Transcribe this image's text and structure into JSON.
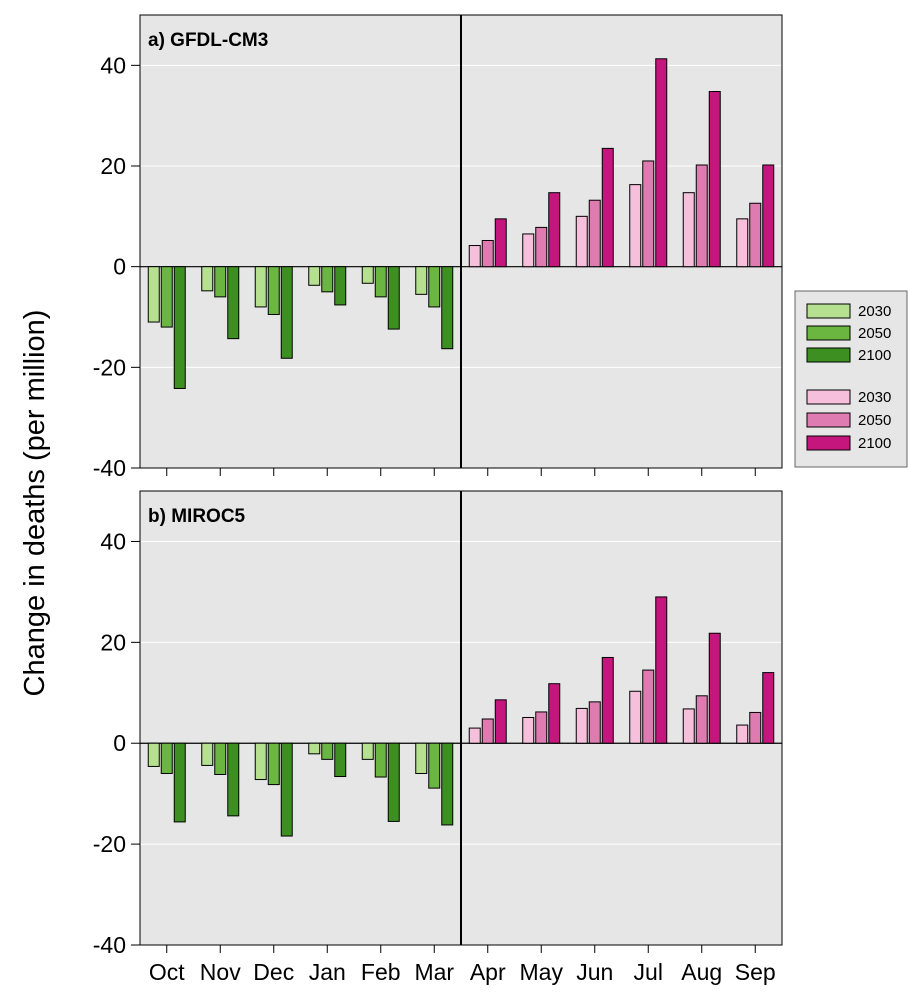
{
  "chart_data": {
    "type": "bar",
    "ylabel": "Change in deaths (per million)",
    "ylim": [
      -40,
      50
    ],
    "yticks": [
      -40,
      -20,
      0,
      20,
      40
    ],
    "categories": [
      "Oct",
      "Nov",
      "Dec",
      "Jan",
      "Feb",
      "Mar",
      "Apr",
      "May",
      "Jun",
      "Jul",
      "Aug",
      "Sep"
    ],
    "grid": "horizontal",
    "legend_position": "right",
    "season_divider_between": [
      "Mar",
      "Apr"
    ],
    "colors": {
      "cold": [
        "#b5e08f",
        "#6ab640",
        "#3e8f22"
      ],
      "warm": [
        "#f6c0dc",
        "#de7cb1",
        "#c4167d"
      ],
      "background": "#e6e6e6"
    },
    "legend": {
      "cold_labels": [
        "2030",
        "2050",
        "2100"
      ],
      "warm_labels": [
        "2030",
        "2050",
        "2100"
      ]
    },
    "panels": [
      {
        "title": "a) GFDL-CM3",
        "series": [
          {
            "name": "2030",
            "values": [
              -11,
              -4.8,
              -8,
              -3.7,
              -3.3,
              -5.5,
              4.2,
              6.5,
              10,
              16.3,
              14.7,
              9.5
            ]
          },
          {
            "name": "2050",
            "values": [
              -12,
              -6,
              -9.5,
              -5,
              -6,
              -8,
              5.2,
              7.8,
              13.2,
              21,
              20.2,
              12.6
            ]
          },
          {
            "name": "2100",
            "values": [
              -24.2,
              -14.3,
              -18.2,
              -7.6,
              -12.4,
              -16.3,
              9.5,
              14.7,
              23.5,
              41.3,
              34.8,
              20.2
            ]
          }
        ]
      },
      {
        "title": "b) MIROC5",
        "series": [
          {
            "name": "2030",
            "values": [
              -4.6,
              -4.4,
              -7.2,
              -2.1,
              -3.2,
              -6,
              3,
              5.1,
              6.9,
              10.3,
              6.8,
              3.6
            ]
          },
          {
            "name": "2050",
            "values": [
              -6,
              -6.2,
              -8.2,
              -3.2,
              -6.7,
              -8.9,
              4.8,
              6.2,
              8.2,
              14.5,
              9.4,
              6.1
            ]
          },
          {
            "name": "2100",
            "values": [
              -15.6,
              -14.4,
              -18.4,
              -6.6,
              -15.5,
              -16.2,
              8.6,
              11.8,
              17,
              29,
              21.8,
              14
            ]
          }
        ]
      }
    ]
  }
}
